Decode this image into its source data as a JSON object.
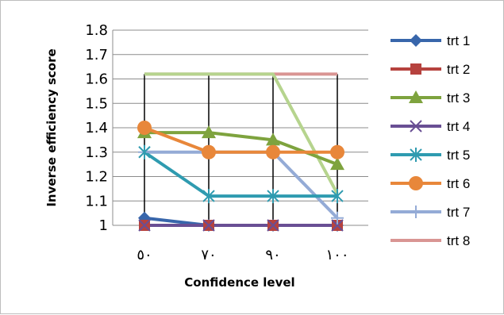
{
  "chart_data": {
    "type": "line",
    "title": "",
    "xlabel": "Confidence level",
    "ylabel": "Inverse efficiency score",
    "categories": [
      "٥٠",
      "٧٠",
      "٩٠",
      "١٠٠"
    ],
    "ylim": [
      1,
      1.8
    ],
    "yticks": [
      "1",
      "1.1",
      "1.2",
      "1.3",
      "1.4",
      "1.5",
      "1.6",
      "1.7",
      "1.8"
    ],
    "grid": "horizontal",
    "legend": "right",
    "series": [
      {
        "name": "trt 1",
        "color": "#3866ab",
        "marker": "diamond",
        "values": [
          1.03,
          1.0,
          1.0,
          1.0
        ]
      },
      {
        "name": "trt 2",
        "color": "#b6423e",
        "marker": "square",
        "values": [
          1.0,
          1.0,
          1.0,
          1.0
        ]
      },
      {
        "name": "trt 3",
        "color": "#7ea33e",
        "marker": "triangle",
        "values": [
          1.38,
          1.38,
          1.35,
          1.25
        ]
      },
      {
        "name": "trt 4",
        "color": "#694f94",
        "marker": "x",
        "values": [
          1.0,
          1.0,
          1.0,
          1.0
        ]
      },
      {
        "name": "trt 5",
        "color": "#2f9bb0",
        "marker": "star",
        "values": [
          1.3,
          1.12,
          1.12,
          1.12
        ]
      },
      {
        "name": "trt 6",
        "color": "#e8873a",
        "marker": "circle",
        "values": [
          1.4,
          1.3,
          1.3,
          1.3
        ]
      },
      {
        "name": "trt 7",
        "color": "#94abd6",
        "marker": "plus",
        "values": [
          1.3,
          1.3,
          1.3,
          1.03
        ]
      },
      {
        "name": "trt 8",
        "color": "#d99593",
        "marker": "none",
        "values": [
          1.62,
          1.62,
          1.62,
          1.62
        ]
      }
    ],
    "extra_lines": [
      {
        "color": "#b6d48e",
        "values": [
          1.62,
          1.62,
          1.62,
          1.13
        ]
      }
    ]
  }
}
